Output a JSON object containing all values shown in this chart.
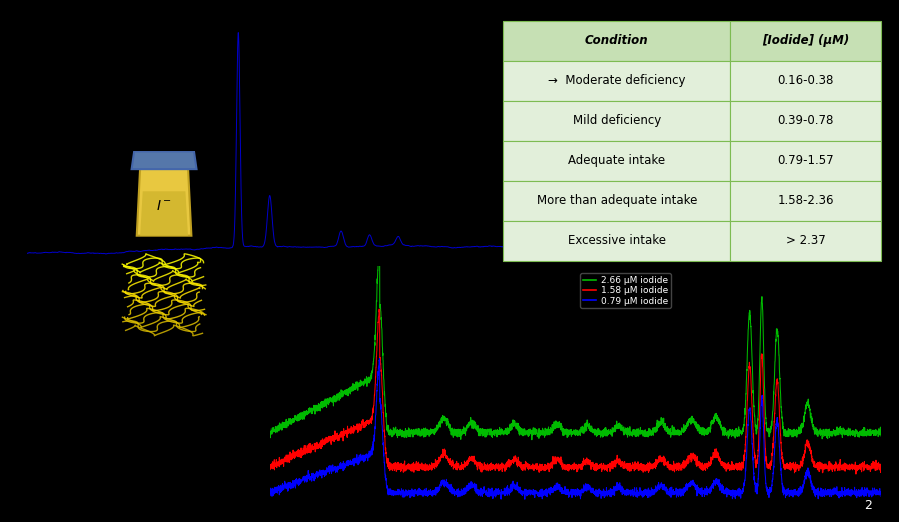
{
  "background_color": "#000000",
  "table": {
    "header": [
      "Condition",
      "[Iodide] (μM)"
    ],
    "rows": [
      [
        "→  Moderate deficiency",
        "0.16-0.38"
      ],
      [
        "Mild deficiency",
        "0.39-0.78"
      ],
      [
        "Adequate intake",
        "0.79-1.57"
      ],
      [
        "More than adequate intake",
        "1.58-2.36"
      ],
      [
        "Excessive intake",
        "> 2.37"
      ]
    ],
    "header_style": {
      "bg": "#c6e0b4",
      "fontsize": 8.5,
      "bold": true,
      "italic": true
    },
    "row_style": {
      "bg": "#e2efda",
      "fontsize": 8.5
    },
    "border_color": "#7dbb52"
  },
  "top_spectrum": {
    "color": "#0000cc",
    "linewidth": 0.7
  },
  "bottom_spectra": {
    "lines": [
      {
        "label": "2.66 μM iodide",
        "color": "#00bb00"
      },
      {
        "label": "1.58 μM iodide",
        "color": "#ff0000"
      },
      {
        "label": "0.79 μM iodide",
        "color": "#0000ff"
      }
    ],
    "legend_fontsize": 6.5
  },
  "page_number": "2"
}
